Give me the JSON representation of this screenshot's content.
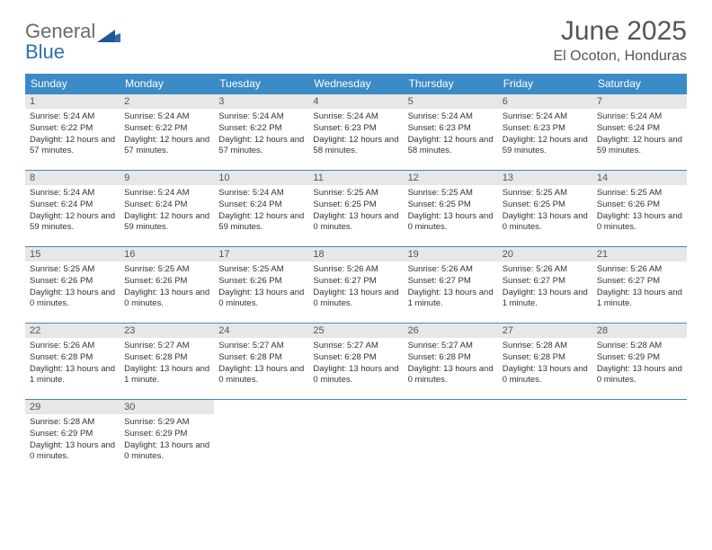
{
  "brand": {
    "text1": "General",
    "text2": "Blue",
    "color1": "#6a6a6a",
    "color2": "#2f6fb0"
  },
  "title": "June 2025",
  "location": "El Ocoton, Honduras",
  "header_bg": "#3b8bc7",
  "daynum_bg": "#e7e7e7",
  "days": [
    "Sunday",
    "Monday",
    "Tuesday",
    "Wednesday",
    "Thursday",
    "Friday",
    "Saturday"
  ],
  "weeks": [
    [
      {
        "n": "1",
        "sr": "5:24 AM",
        "ss": "6:22 PM",
        "dl": "12 hours and 57 minutes."
      },
      {
        "n": "2",
        "sr": "5:24 AM",
        "ss": "6:22 PM",
        "dl": "12 hours and 57 minutes."
      },
      {
        "n": "3",
        "sr": "5:24 AM",
        "ss": "6:22 PM",
        "dl": "12 hours and 57 minutes."
      },
      {
        "n": "4",
        "sr": "5:24 AM",
        "ss": "6:23 PM",
        "dl": "12 hours and 58 minutes."
      },
      {
        "n": "5",
        "sr": "5:24 AM",
        "ss": "6:23 PM",
        "dl": "12 hours and 58 minutes."
      },
      {
        "n": "6",
        "sr": "5:24 AM",
        "ss": "6:23 PM",
        "dl": "12 hours and 59 minutes."
      },
      {
        "n": "7",
        "sr": "5:24 AM",
        "ss": "6:24 PM",
        "dl": "12 hours and 59 minutes."
      }
    ],
    [
      {
        "n": "8",
        "sr": "5:24 AM",
        "ss": "6:24 PM",
        "dl": "12 hours and 59 minutes."
      },
      {
        "n": "9",
        "sr": "5:24 AM",
        "ss": "6:24 PM",
        "dl": "12 hours and 59 minutes."
      },
      {
        "n": "10",
        "sr": "5:24 AM",
        "ss": "6:24 PM",
        "dl": "12 hours and 59 minutes."
      },
      {
        "n": "11",
        "sr": "5:25 AM",
        "ss": "6:25 PM",
        "dl": "13 hours and 0 minutes."
      },
      {
        "n": "12",
        "sr": "5:25 AM",
        "ss": "6:25 PM",
        "dl": "13 hours and 0 minutes."
      },
      {
        "n": "13",
        "sr": "5:25 AM",
        "ss": "6:25 PM",
        "dl": "13 hours and 0 minutes."
      },
      {
        "n": "14",
        "sr": "5:25 AM",
        "ss": "6:26 PM",
        "dl": "13 hours and 0 minutes."
      }
    ],
    [
      {
        "n": "15",
        "sr": "5:25 AM",
        "ss": "6:26 PM",
        "dl": "13 hours and 0 minutes."
      },
      {
        "n": "16",
        "sr": "5:25 AM",
        "ss": "6:26 PM",
        "dl": "13 hours and 0 minutes."
      },
      {
        "n": "17",
        "sr": "5:25 AM",
        "ss": "6:26 PM",
        "dl": "13 hours and 0 minutes."
      },
      {
        "n": "18",
        "sr": "5:26 AM",
        "ss": "6:27 PM",
        "dl": "13 hours and 0 minutes."
      },
      {
        "n": "19",
        "sr": "5:26 AM",
        "ss": "6:27 PM",
        "dl": "13 hours and 1 minute."
      },
      {
        "n": "20",
        "sr": "5:26 AM",
        "ss": "6:27 PM",
        "dl": "13 hours and 1 minute."
      },
      {
        "n": "21",
        "sr": "5:26 AM",
        "ss": "6:27 PM",
        "dl": "13 hours and 1 minute."
      }
    ],
    [
      {
        "n": "22",
        "sr": "5:26 AM",
        "ss": "6:28 PM",
        "dl": "13 hours and 1 minute."
      },
      {
        "n": "23",
        "sr": "5:27 AM",
        "ss": "6:28 PM",
        "dl": "13 hours and 1 minute."
      },
      {
        "n": "24",
        "sr": "5:27 AM",
        "ss": "6:28 PM",
        "dl": "13 hours and 0 minutes."
      },
      {
        "n": "25",
        "sr": "5:27 AM",
        "ss": "6:28 PM",
        "dl": "13 hours and 0 minutes."
      },
      {
        "n": "26",
        "sr": "5:27 AM",
        "ss": "6:28 PM",
        "dl": "13 hours and 0 minutes."
      },
      {
        "n": "27",
        "sr": "5:28 AM",
        "ss": "6:28 PM",
        "dl": "13 hours and 0 minutes."
      },
      {
        "n": "28",
        "sr": "5:28 AM",
        "ss": "6:29 PM",
        "dl": "13 hours and 0 minutes."
      }
    ],
    [
      {
        "n": "29",
        "sr": "5:28 AM",
        "ss": "6:29 PM",
        "dl": "13 hours and 0 minutes."
      },
      {
        "n": "30",
        "sr": "5:29 AM",
        "ss": "6:29 PM",
        "dl": "13 hours and 0 minutes."
      },
      null,
      null,
      null,
      null,
      null
    ]
  ],
  "labels": {
    "sunrise": "Sunrise:",
    "sunset": "Sunset:",
    "daylight": "Daylight:"
  }
}
